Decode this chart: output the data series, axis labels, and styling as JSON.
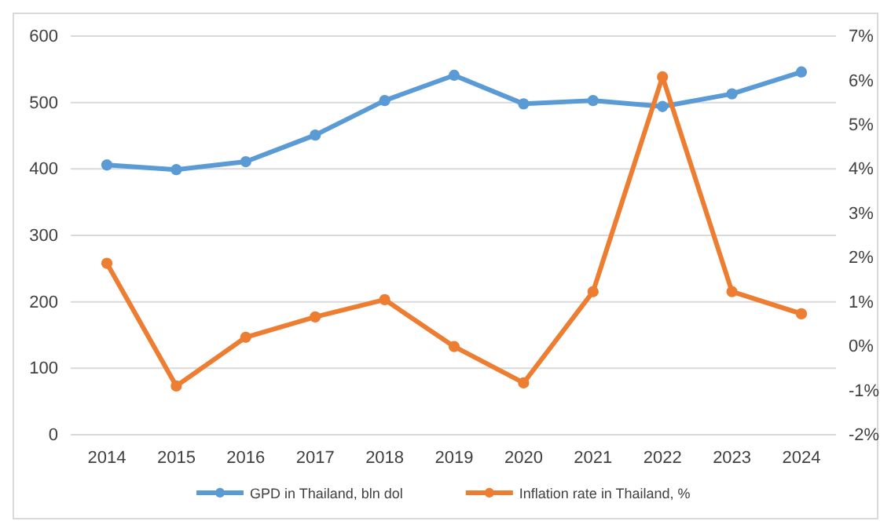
{
  "chart_data": {
    "type": "line",
    "categories": [
      "2014",
      "2015",
      "2016",
      "2017",
      "2018",
      "2019",
      "2020",
      "2021",
      "2022",
      "2023",
      "2024"
    ],
    "series": [
      {
        "name": "GPD in Thailand, bln dol",
        "color": "#5b9bd5",
        "values": [
          406,
          399,
          411,
          451,
          503,
          541,
          498,
          503,
          494,
          513,
          546
        ]
      },
      {
        "name": "Inflation rate in Thailand, %",
        "color": "#ed7d31",
        "axis": "y2",
        "values": [
          1.87,
          -0.9,
          0.2,
          0.66,
          1.05,
          -0.01,
          -0.83,
          1.23,
          6.08,
          1.23,
          0.73
        ]
      }
    ],
    "ylim": [
      0,
      600
    ],
    "yticks": [
      0,
      100,
      200,
      300,
      400,
      500,
      600
    ],
    "y2lim": [
      -2,
      7
    ],
    "y2ticks": [
      {
        "value": -2,
        "label": "-2%"
      },
      {
        "value": -1,
        "label": "-1%"
      },
      {
        "value": 0,
        "label": "0%"
      },
      {
        "value": 1,
        "label": "1%"
      },
      {
        "value": 2,
        "label": "2%"
      },
      {
        "value": 3,
        "label": "3%"
      },
      {
        "value": 4,
        "label": "4%"
      },
      {
        "value": 5,
        "label": "5%"
      },
      {
        "value": 6,
        "label": "6%"
      },
      {
        "value": 7,
        "label": "7%"
      }
    ],
    "grid": "y",
    "legend": "bottom",
    "marker": "circle",
    "line_style": "solid"
  }
}
